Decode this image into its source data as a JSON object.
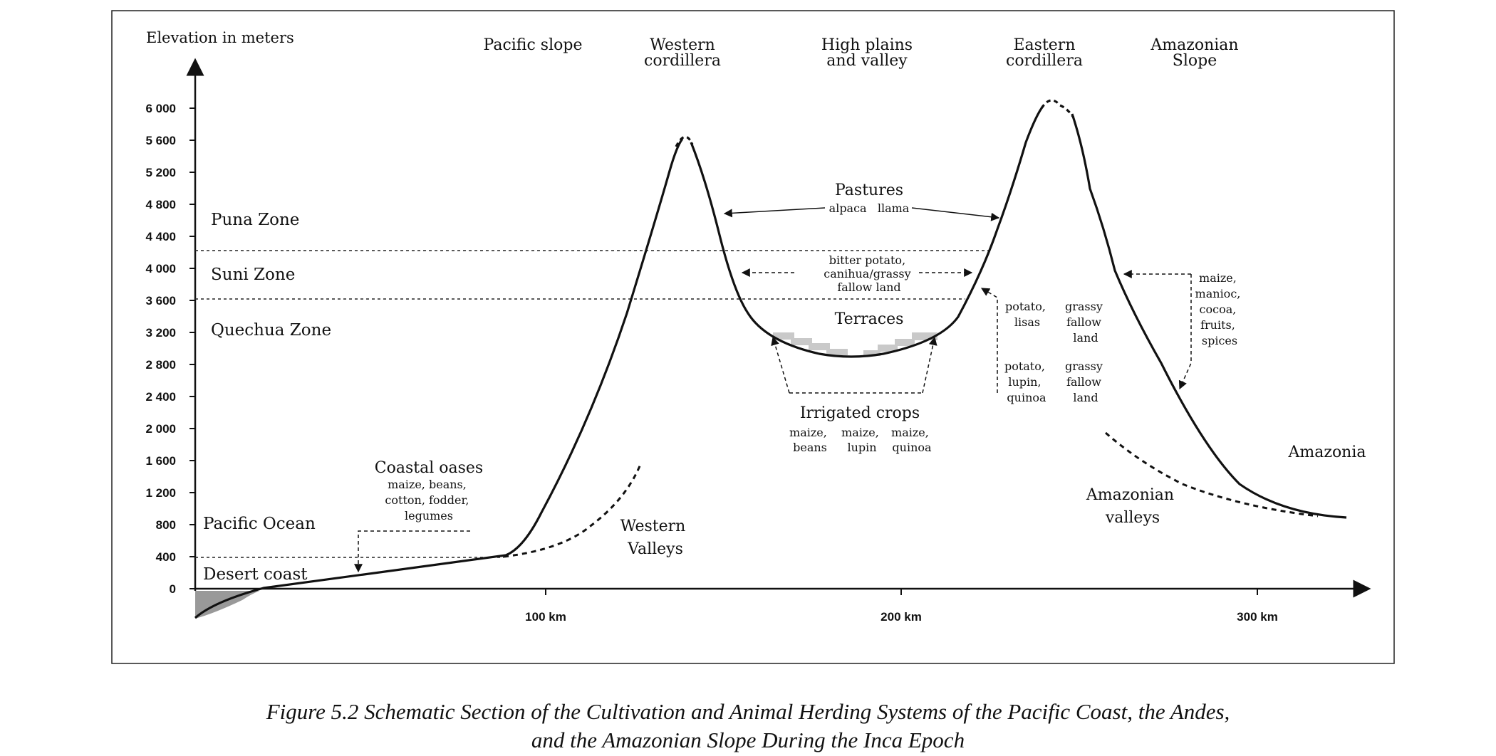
{
  "axes": {
    "y_title": "Elevation in meters",
    "y_ticks": [
      "6 000",
      "5 600",
      "5 200",
      "4 800",
      "4 400",
      "4 000",
      "3 600",
      "3 200",
      "2 800",
      "2 400",
      "2 000",
      "1 600",
      "1 200",
      "800",
      "400",
      "0"
    ],
    "x_ticks": [
      "100 km",
      "200 km",
      "300 km"
    ]
  },
  "regions": [
    [
      "Pacific slope"
    ],
    [
      "Western",
      "cordillera"
    ],
    [
      "High plains",
      "and valley"
    ],
    [
      "Eastern",
      "cordillera"
    ],
    [
      "Amazonian",
      "Slope"
    ]
  ],
  "zones": {
    "puna": "Puna Zone",
    "suni": "Suni Zone",
    "quechua": "Quechua Zone",
    "pacific_ocean": "Pacific Ocean",
    "desert_coast": "Desert coast"
  },
  "labels": {
    "pastures": "Pastures",
    "pastures_animals": "alpaca   llama",
    "suni_crops": [
      "bitter potato,",
      "canihua/grassy",
      "fallow land"
    ],
    "terraces": "Terraces",
    "irrigated_title": "Irrigated crops",
    "irrigated_crops": [
      [
        "maize,",
        "beans"
      ],
      [
        "maize,",
        "lupin"
      ],
      [
        "maize,",
        "quinoa"
      ]
    ],
    "coastal_title": "Coastal oases",
    "coastal_crops": [
      "maize, beans,",
      "cotton, fodder,",
      "legumes"
    ],
    "western_valleys": [
      "Western",
      "Valleys"
    ],
    "east_col1_top": [
      "potato,",
      "lisas"
    ],
    "east_col2_top": [
      "grassy",
      "fallow",
      "land"
    ],
    "east_col1_bottom": [
      "potato,",
      "lupin,",
      "quinoa"
    ],
    "east_col2_bottom": [
      "grassy",
      "fallow",
      "land"
    ],
    "amazon_crops": [
      "maize,",
      "manioc,",
      "cocoa,",
      "fruits,",
      "spices"
    ],
    "amazonia": "Amazonia",
    "amazonian_valleys": [
      "Amazonian",
      "valleys"
    ]
  },
  "caption": [
    "Figure 5.2 Schematic Section of the Cultivation and Animal Herding Systems of the Pacific Coast, the Andes,",
    "and the Amazonian Slope During the Inca Epoch"
  ]
}
